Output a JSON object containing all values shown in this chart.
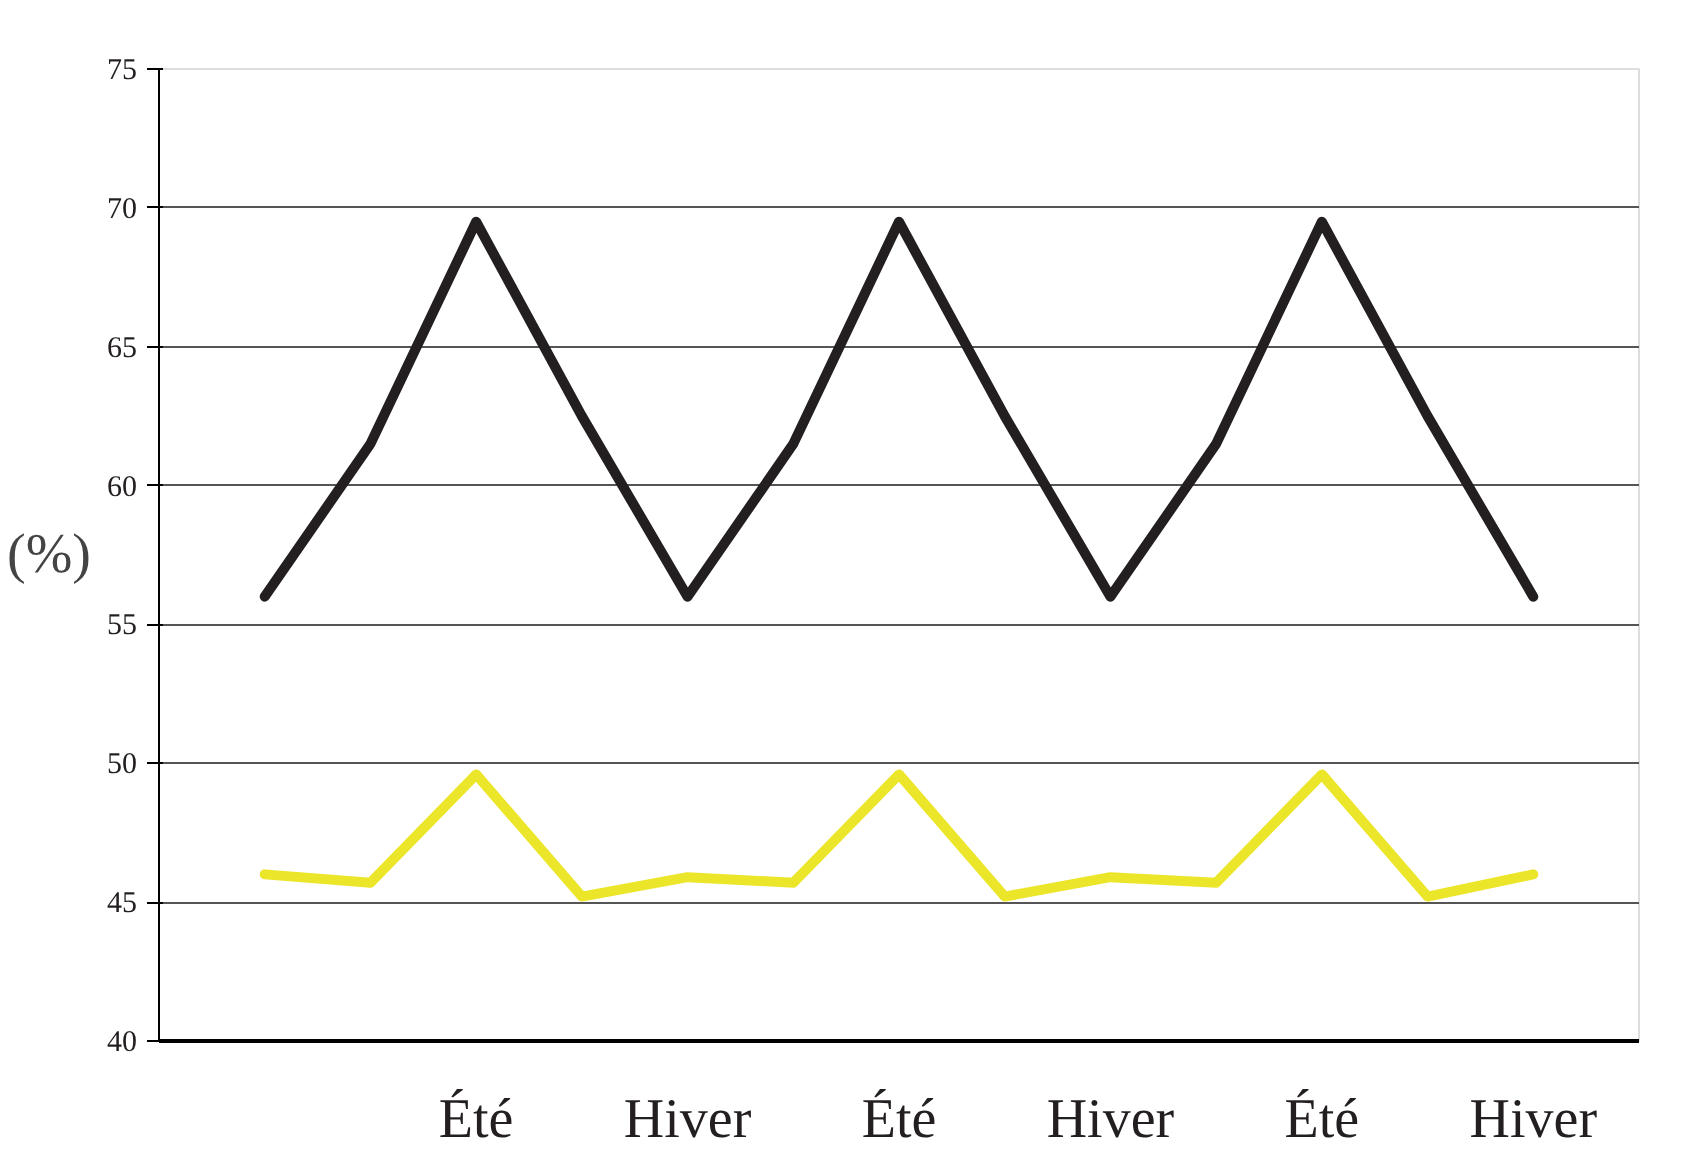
{
  "chart_data": {
    "type": "line",
    "ylabel": "(%)",
    "categories": [
      null,
      null,
      "Été",
      null,
      "Hiver",
      null,
      "Été",
      null,
      "Hiver",
      null,
      "Été",
      null,
      "Hiver"
    ],
    "series": [
      {
        "color": "#231f20",
        "values": [
          56,
          61.5,
          69.5,
          62.5,
          56,
          61.5,
          69.5,
          62.5,
          56,
          61.5,
          69.5,
          62.5,
          56
        ]
      },
      {
        "color": "#ebe62a",
        "values": [
          46,
          45.7,
          49.6,
          45.2,
          45.9,
          45.7,
          49.6,
          45.2,
          45.9,
          45.7,
          49.6,
          45.2,
          46
        ]
      }
    ],
    "ylim": [
      40,
      75
    ],
    "yticks": [
      40,
      45,
      50,
      55,
      60,
      65,
      70,
      75
    ],
    "grid": "y",
    "marker": "none",
    "line_style": "solid"
  }
}
